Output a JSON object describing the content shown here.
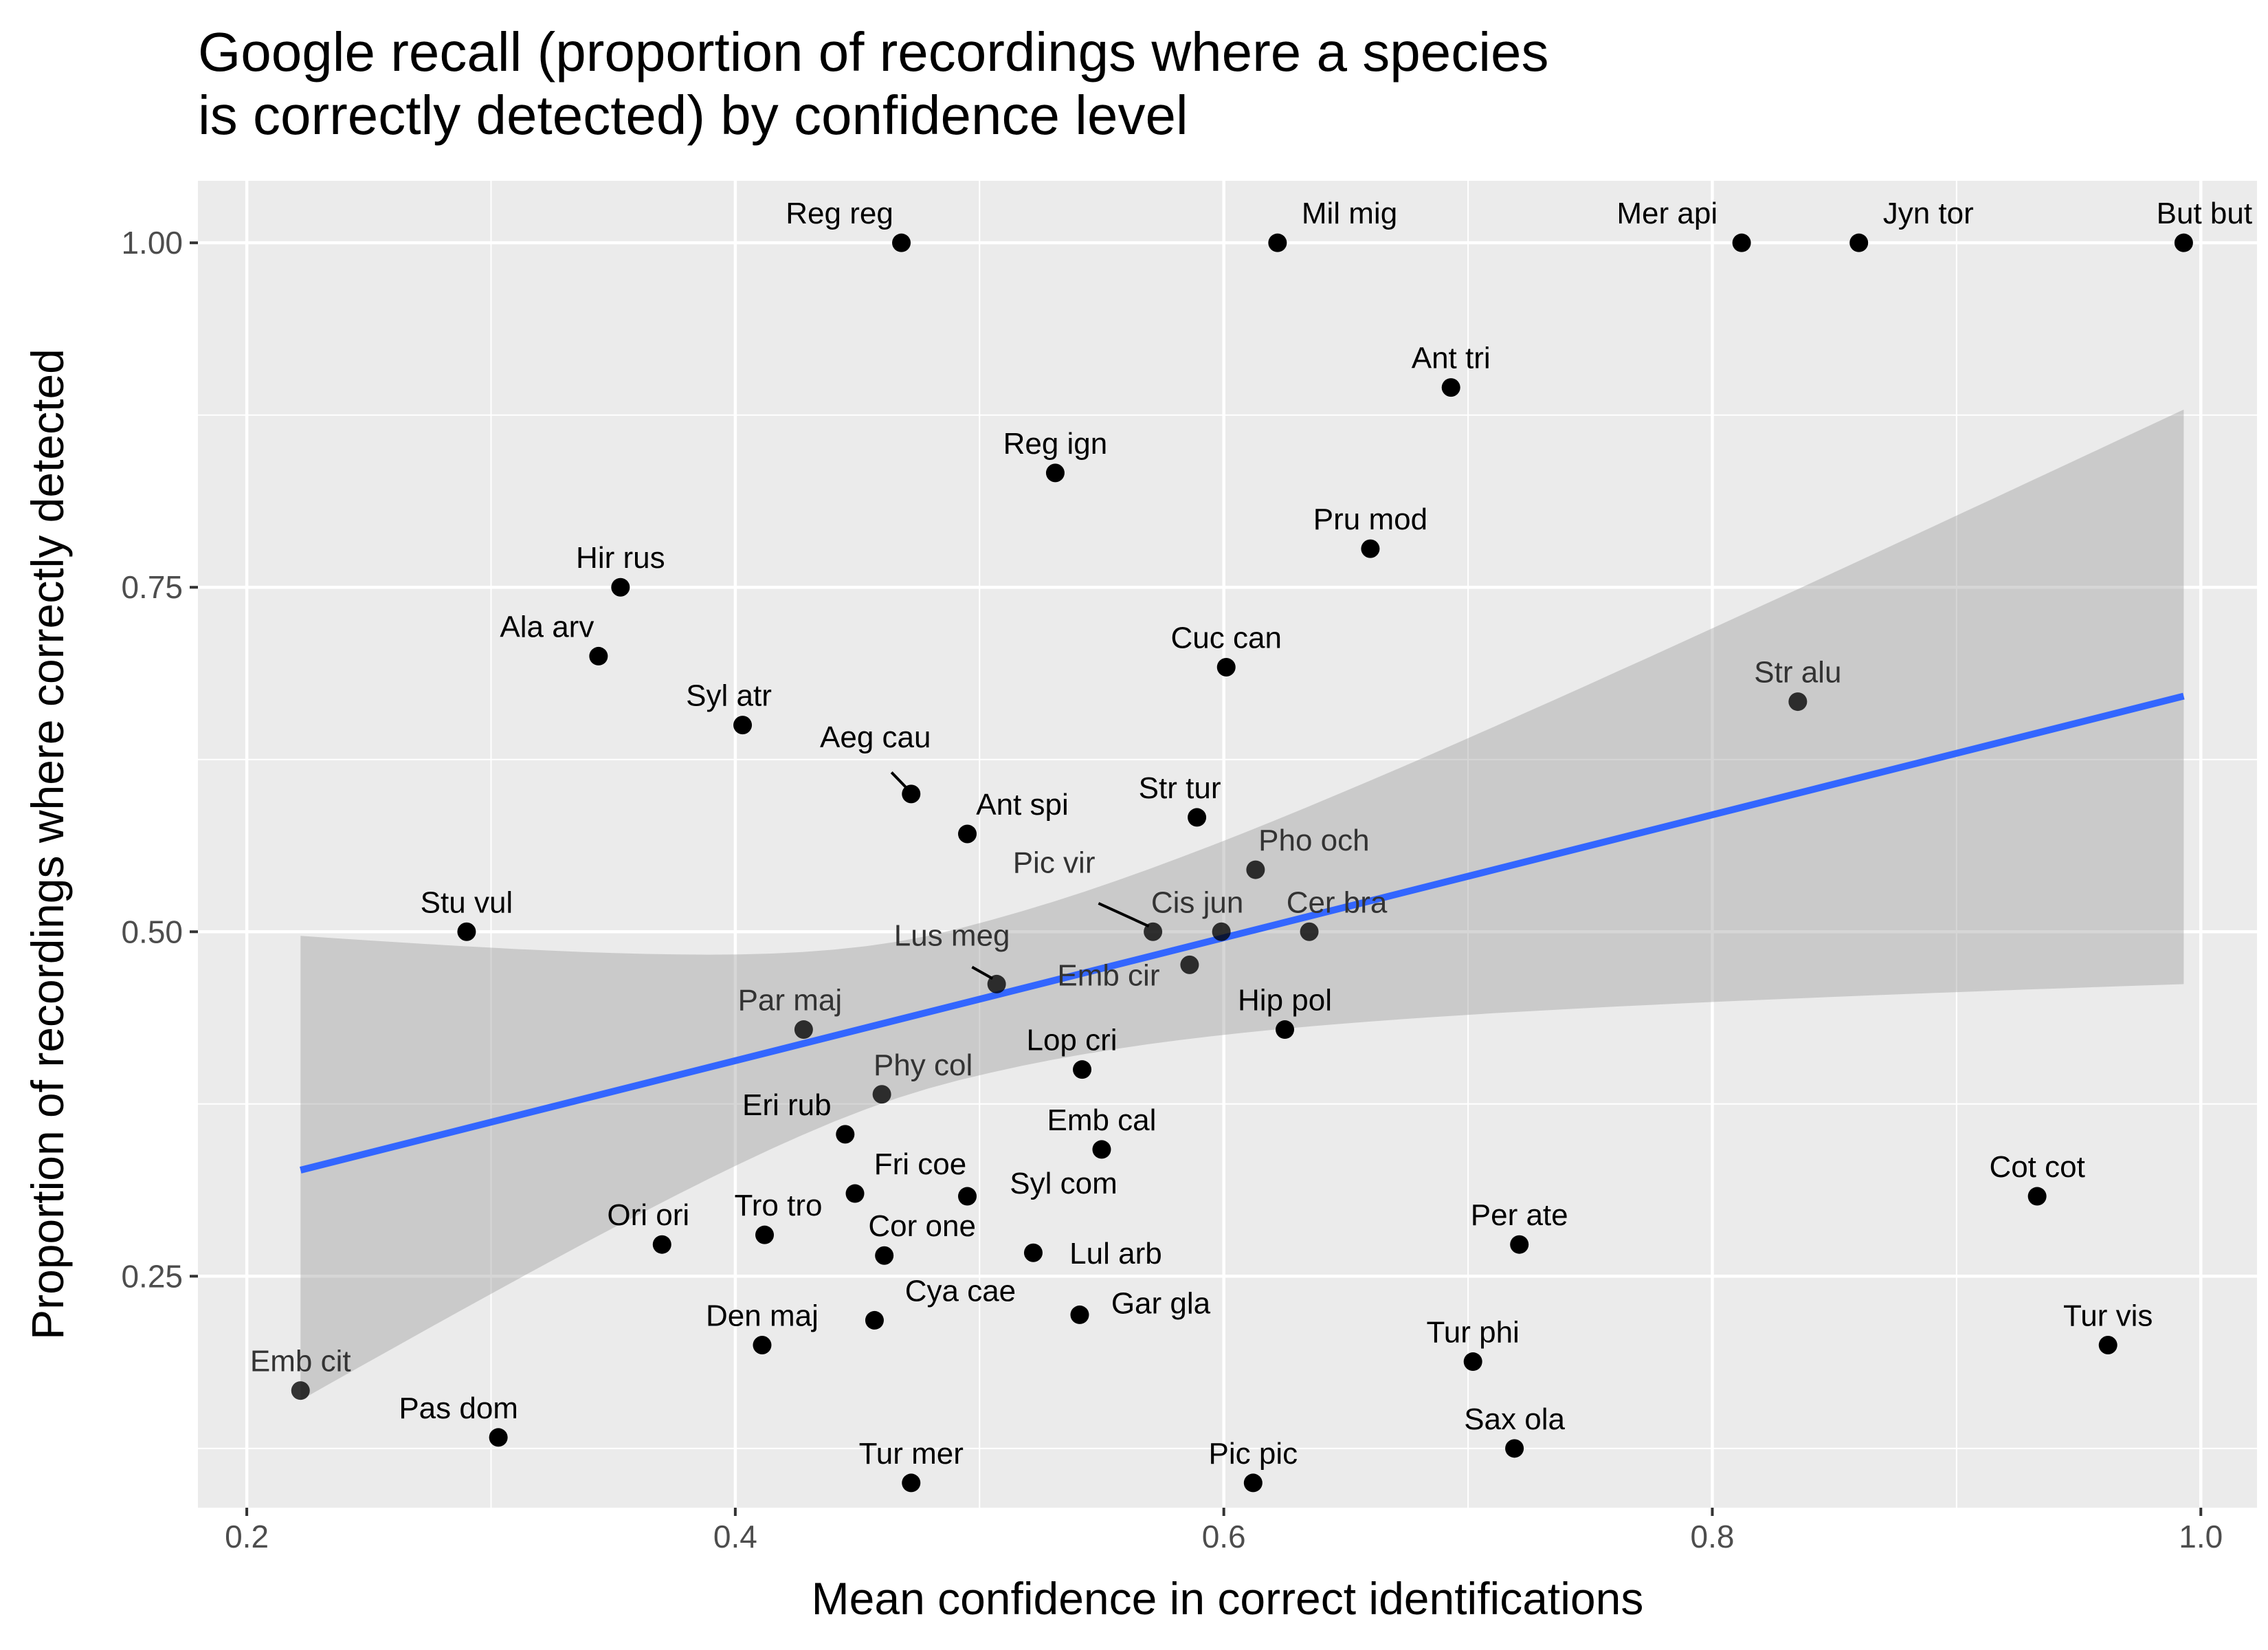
{
  "chart_data": {
    "type": "scatter",
    "title": "Google recall (proportion of recordings where a species\nis correctly detected) by confidence level",
    "xlabel": "Mean confidence in correct identifications",
    "ylabel": "Proportion of recordings where correctly detected",
    "xlim": [
      0.18,
      1.023
    ],
    "ylim": [
      0.082,
      1.045
    ],
    "x_ticks": [
      0.2,
      0.4,
      0.6,
      0.8,
      1.0
    ],
    "x_tick_labels": [
      "0.2",
      "0.4",
      "0.6",
      "0.8",
      "1.0"
    ],
    "y_ticks": [
      0.25,
      0.5,
      0.75,
      1.0
    ],
    "y_tick_labels": [
      "0.25",
      "0.50",
      "0.75",
      "1.00"
    ],
    "grid": true,
    "points": [
      {
        "label": "Reg reg",
        "x": 0.468,
        "y": 1.0
      },
      {
        "label": "Mil mig",
        "x": 0.622,
        "y": 1.0
      },
      {
        "label": "Mer api",
        "x": 0.812,
        "y": 1.0
      },
      {
        "label": "Jyn tor",
        "x": 0.86,
        "y": 1.0
      },
      {
        "label": "But but",
        "x": 0.993,
        "y": 1.0
      },
      {
        "label": "Ant tri",
        "x": 0.693,
        "y": 0.895
      },
      {
        "label": "Reg ign",
        "x": 0.531,
        "y": 0.833
      },
      {
        "label": "Pru mod",
        "x": 0.66,
        "y": 0.778
      },
      {
        "label": "Hir rus",
        "x": 0.353,
        "y": 0.75
      },
      {
        "label": "Ala arv",
        "x": 0.344,
        "y": 0.7
      },
      {
        "label": "Cuc can",
        "x": 0.601,
        "y": 0.692
      },
      {
        "label": "Str alu",
        "x": 0.835,
        "y": 0.667
      },
      {
        "label": "Syl atr",
        "x": 0.403,
        "y": 0.65
      },
      {
        "label": "Aeg cau",
        "x": 0.472,
        "y": 0.6
      },
      {
        "label": "Str tur",
        "x": 0.589,
        "y": 0.583
      },
      {
        "label": "Ant spi",
        "x": 0.495,
        "y": 0.571
      },
      {
        "label": "Pho och",
        "x": 0.613,
        "y": 0.545
      },
      {
        "label": "Stu vul",
        "x": 0.29,
        "y": 0.5
      },
      {
        "label": "Pic vir",
        "x": 0.571,
        "y": 0.5
      },
      {
        "label": "Cis jun",
        "x": 0.599,
        "y": 0.5
      },
      {
        "label": "Cer bra",
        "x": 0.635,
        "y": 0.5
      },
      {
        "label": "Emb cir",
        "x": 0.586,
        "y": 0.476
      },
      {
        "label": "Lus meg",
        "x": 0.507,
        "y": 0.462
      },
      {
        "label": "Par maj",
        "x": 0.428,
        "y": 0.429
      },
      {
        "label": "Hip pol",
        "x": 0.625,
        "y": 0.429
      },
      {
        "label": "Lop cri",
        "x": 0.542,
        "y": 0.4
      },
      {
        "label": "Phy col",
        "x": 0.46,
        "y": 0.382
      },
      {
        "label": "Eri rub",
        "x": 0.445,
        "y": 0.353
      },
      {
        "label": "Emb cal",
        "x": 0.55,
        "y": 0.342
      },
      {
        "label": "Cot cot",
        "x": 0.933,
        "y": 0.308
      },
      {
        "label": "Fri coe",
        "x": 0.449,
        "y": 0.31
      },
      {
        "label": "Syl com",
        "x": 0.495,
        "y": 0.308
      },
      {
        "label": "Ori ori",
        "x": 0.37,
        "y": 0.273
      },
      {
        "label": "Tro tro",
        "x": 0.412,
        "y": 0.28
      },
      {
        "label": "Per ate",
        "x": 0.721,
        "y": 0.273
      },
      {
        "label": "Cor one",
        "x": 0.461,
        "y": 0.265
      },
      {
        "label": "Lul arb",
        "x": 0.522,
        "y": 0.267
      },
      {
        "label": "Cya cae",
        "x": 0.457,
        "y": 0.218
      },
      {
        "label": "Gar gla",
        "x": 0.541,
        "y": 0.222
      },
      {
        "label": "Den maj",
        "x": 0.411,
        "y": 0.2
      },
      {
        "label": "Tur vis",
        "x": 0.962,
        "y": 0.2
      },
      {
        "label": "Tur phi",
        "x": 0.702,
        "y": 0.188
      },
      {
        "label": "Emb cit",
        "x": 0.222,
        "y": 0.167
      },
      {
        "label": "Pas dom",
        "x": 0.303,
        "y": 0.133
      },
      {
        "label": "Sax ola",
        "x": 0.719,
        "y": 0.125
      },
      {
        "label": "Tur mer",
        "x": 0.472,
        "y": 0.1
      },
      {
        "label": "Pic pic",
        "x": 0.612,
        "y": 0.1
      }
    ],
    "trend_line": {
      "x": [
        0.222,
        0.993
      ],
      "y": [
        0.327,
        0.671
      ]
    },
    "confidence_band": {
      "x": [
        0.222,
        0.993
      ],
      "lower": [
        0.16,
        0.462
      ],
      "upper": [
        0.497,
        0.879
      ]
    },
    "colors": {
      "panel": "#ebebeb",
      "grid": "#ffffff",
      "point": "#000000",
      "trend": "#3366ff",
      "band": "#999999",
      "label": "#000000",
      "tick": "#4d4d4d"
    }
  }
}
